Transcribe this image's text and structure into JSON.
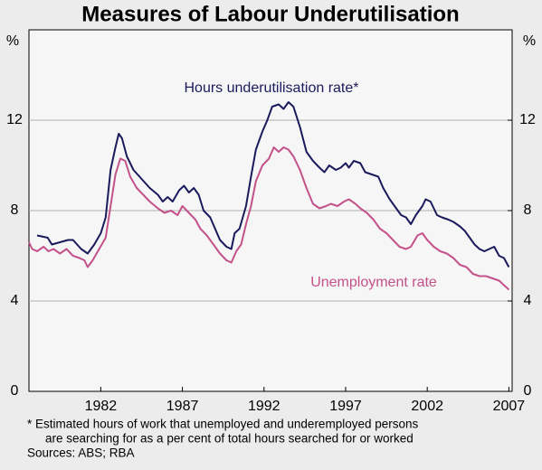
{
  "chart_data": {
    "type": "line",
    "title": "Measures of Labour Underutilisation",
    "ylabel": "%",
    "y2label": "%",
    "xlim": [
      1977.6,
      2007.2
    ],
    "xticks": [
      1982,
      1987,
      1992,
      1997,
      2002,
      2007
    ],
    "ylim": [
      0,
      16
    ],
    "yticks": [
      0,
      4,
      8,
      12
    ],
    "y2lim": [
      0,
      16
    ],
    "y2ticks": [
      0,
      4,
      8,
      12
    ],
    "grid": true,
    "series": [
      {
        "name": "Hours underutilisation rate*",
        "color": "#1b1a5c",
        "x": [
          1978.1,
          1978.75,
          1979.0,
          1979.5,
          1980.0,
          1980.3,
          1980.8,
          1981.2,
          1981.6,
          1982.0,
          1982.3,
          1982.6,
          1982.9,
          1983.1,
          1983.3,
          1983.6,
          1984.0,
          1984.5,
          1985.0,
          1985.5,
          1985.8,
          1986.1,
          1986.4,
          1986.8,
          1987.1,
          1987.4,
          1987.7,
          1988.0,
          1988.3,
          1988.7,
          1989.0,
          1989.3,
          1989.7,
          1990.0,
          1990.2,
          1990.5,
          1990.9,
          1991.2,
          1991.5,
          1991.9,
          1992.2,
          1992.5,
          1992.9,
          1993.2,
          1993.5,
          1993.8,
          1994.2,
          1994.6,
          1995.0,
          1995.4,
          1995.7,
          1996.0,
          1996.4,
          1996.7,
          1997.0,
          1997.2,
          1997.5,
          1997.9,
          1998.2,
          1998.6,
          1999.0,
          1999.3,
          1999.7,
          2000.0,
          2000.4,
          2000.7,
          2001.0,
          2001.3,
          2001.7,
          2001.9,
          2002.2,
          2002.6,
          2002.9,
          2003.3,
          2003.6,
          2004.0,
          2004.3,
          2004.6,
          2004.9,
          2005.2,
          2005.5,
          2005.8,
          2006.1,
          2006.4,
          2006.7,
          2007.0
        ],
        "values": [
          6.9,
          6.8,
          6.5,
          6.6,
          6.7,
          6.7,
          6.3,
          6.1,
          6.5,
          7.0,
          7.7,
          9.8,
          10.8,
          11.4,
          11.2,
          10.4,
          9.8,
          9.4,
          9.0,
          8.7,
          8.4,
          8.6,
          8.4,
          8.9,
          9.1,
          8.8,
          9.0,
          8.7,
          8.0,
          7.7,
          7.2,
          6.7,
          6.4,
          6.3,
          7.0,
          7.2,
          8.2,
          9.5,
          10.7,
          11.5,
          12.0,
          12.6,
          12.7,
          12.5,
          12.8,
          12.6,
          11.7,
          10.6,
          10.2,
          9.9,
          9.7,
          10.0,
          9.8,
          9.9,
          10.1,
          9.9,
          10.2,
          10.1,
          9.7,
          9.6,
          9.5,
          9.0,
          8.5,
          8.2,
          7.8,
          7.7,
          7.4,
          7.8,
          8.2,
          8.5,
          8.4,
          7.8,
          7.7,
          7.6,
          7.5,
          7.3,
          7.1,
          6.8,
          6.5,
          6.3,
          6.2,
          6.3,
          6.4,
          6.0,
          5.9,
          5.5
        ]
      },
      {
        "name": "Unemployment rate",
        "color": "#c4528a",
        "x": [
          1977.6,
          1977.8,
          1978.1,
          1978.5,
          1978.8,
          1979.1,
          1979.5,
          1979.9,
          1980.3,
          1980.7,
          1981.0,
          1981.2,
          1981.5,
          1981.9,
          1982.3,
          1982.6,
          1982.9,
          1983.2,
          1983.5,
          1983.8,
          1984.2,
          1984.6,
          1985.0,
          1985.5,
          1985.9,
          1986.3,
          1986.7,
          1987.0,
          1987.4,
          1987.8,
          1988.1,
          1988.5,
          1988.9,
          1989.3,
          1989.7,
          1990.0,
          1990.3,
          1990.6,
          1990.9,
          1991.2,
          1991.5,
          1991.9,
          1992.3,
          1992.6,
          1992.9,
          1993.2,
          1993.5,
          1993.8,
          1994.2,
          1994.6,
          1995.0,
          1995.4,
          1995.8,
          1996.1,
          1996.5,
          1996.9,
          1997.2,
          1997.6,
          1997.9,
          1998.3,
          1998.7,
          1999.1,
          1999.5,
          1999.9,
          2000.3,
          2000.7,
          2001.0,
          2001.4,
          2001.7,
          2002.0,
          2002.4,
          2002.8,
          2003.2,
          2003.6,
          2004.0,
          2004.4,
          2004.8,
          2005.2,
          2005.6,
          2006.0,
          2006.4,
          2006.7,
          2007.0
        ],
        "values": [
          6.6,
          6.3,
          6.2,
          6.4,
          6.2,
          6.3,
          6.1,
          6.3,
          6.0,
          5.9,
          5.8,
          5.5,
          5.8,
          6.3,
          6.8,
          8.2,
          9.6,
          10.3,
          10.2,
          9.5,
          9.0,
          8.7,
          8.4,
          8.1,
          7.9,
          8.0,
          7.8,
          8.2,
          7.9,
          7.6,
          7.2,
          6.9,
          6.5,
          6.1,
          5.8,
          5.7,
          6.2,
          6.5,
          7.4,
          8.2,
          9.3,
          10.0,
          10.3,
          10.8,
          10.6,
          10.8,
          10.7,
          10.4,
          9.8,
          9.0,
          8.3,
          8.1,
          8.2,
          8.3,
          8.2,
          8.4,
          8.5,
          8.3,
          8.1,
          7.9,
          7.6,
          7.2,
          7.0,
          6.7,
          6.4,
          6.3,
          6.4,
          6.9,
          7.0,
          6.7,
          6.4,
          6.2,
          6.1,
          5.9,
          5.6,
          5.5,
          5.2,
          5.1,
          5.1,
          5.0,
          4.9,
          4.7,
          4.5
        ]
      }
    ],
    "footnotes": [
      "*   Estimated hours of work that unemployed and underemployed persons",
      "are searching for as a per cent of total hours searched for or worked",
      "Sources: ABS; RBA"
    ]
  }
}
